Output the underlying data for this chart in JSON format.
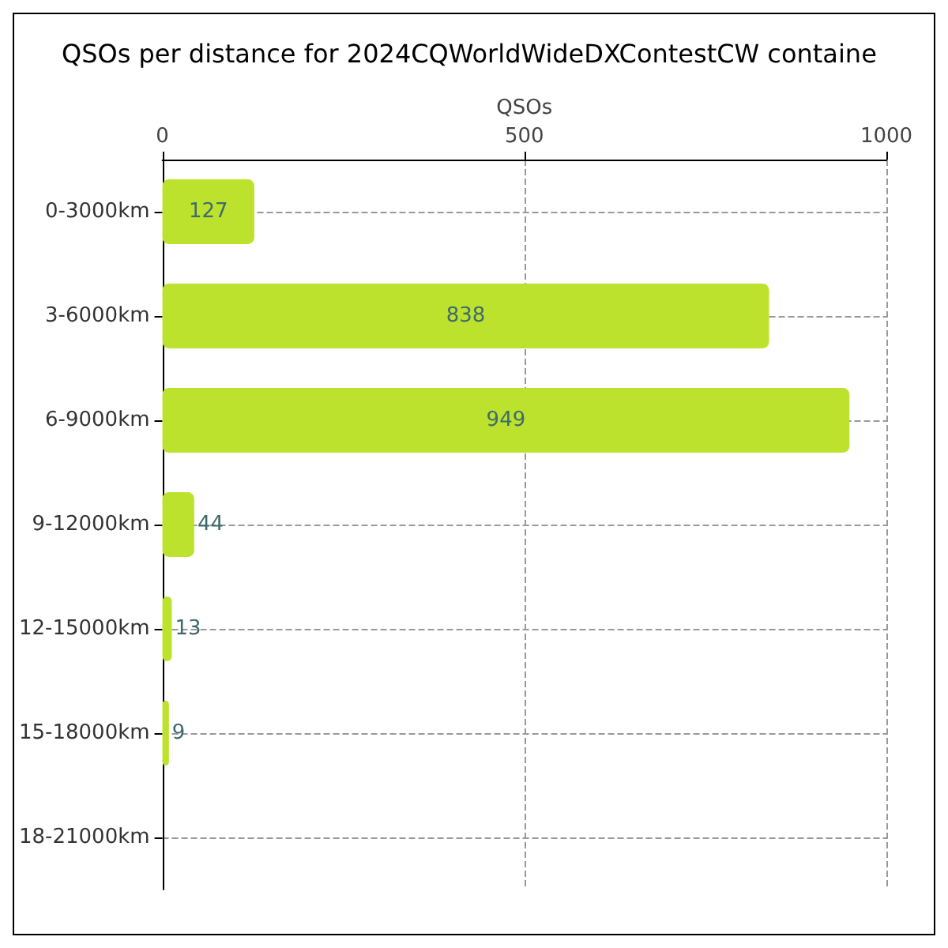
{
  "chart_data": {
    "type": "bar",
    "orientation": "horizontal",
    "title": "QSOs per distance for 2024CQWorldWideDXContestCW containe",
    "xlabel": "QSOs",
    "categories": [
      "0-3000km",
      "3-6000km",
      "6-9000km",
      "9-12000km",
      "12-15000km",
      "15-18000km",
      "18-21000km"
    ],
    "values": [
      127,
      838,
      949,
      44,
      13,
      9,
      null
    ],
    "value_labels": [
      "127",
      "838",
      "949",
      "44",
      "13",
      "9",
      null
    ],
    "color": "#bde22e",
    "xlim": [
      0,
      1000
    ],
    "xticks": [
      0,
      500,
      1000
    ],
    "grid": true
  }
}
